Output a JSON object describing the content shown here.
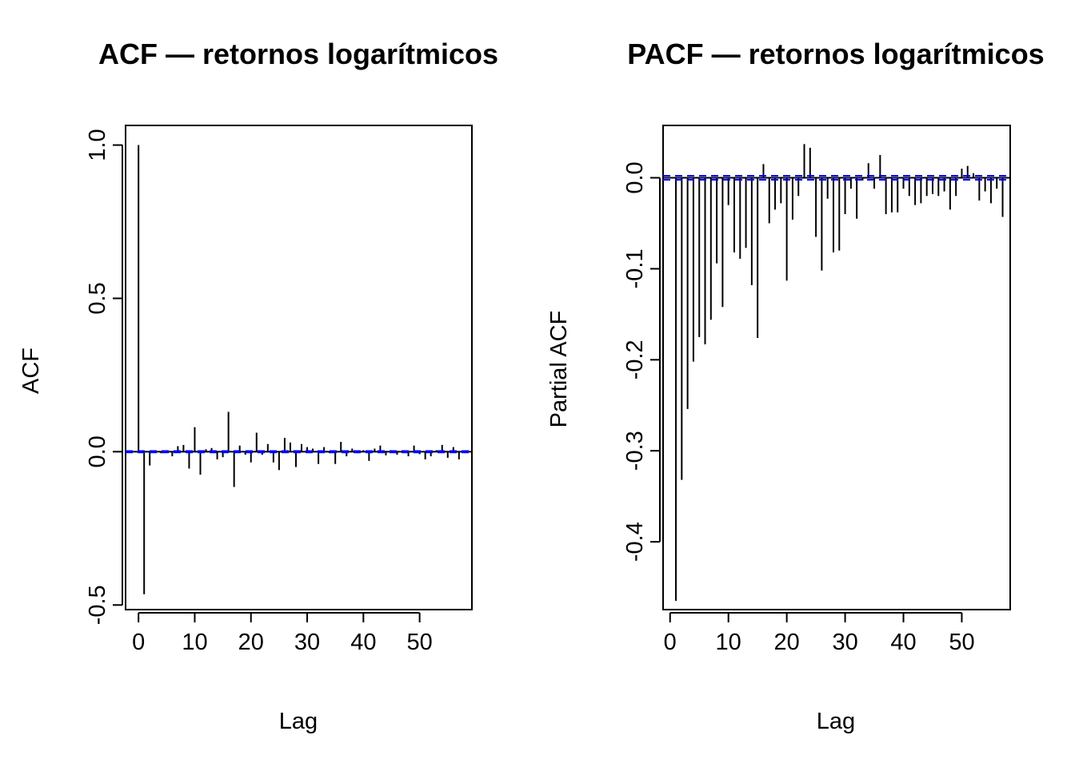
{
  "chart_data": [
    {
      "type": "bar",
      "title": "ACF — retornos logarítmicos",
      "xlabel": "Lag",
      "ylabel": "ACF",
      "xlim": [
        -2.3,
        59.3
      ],
      "ylim": [
        -0.515,
        1.064
      ],
      "xticks": [
        0,
        10,
        20,
        30,
        40,
        50
      ],
      "yticks": [
        -0.5,
        0.0,
        0.5,
        1.0
      ],
      "ytick_labels": [
        "-0.5",
        "0.0",
        "0.5",
        "1.0"
      ],
      "conf_limit": 0.0022,
      "conf_color": "#0000ff",
      "grid": false,
      "lags": [
        0,
        1,
        2,
        3,
        4,
        5,
        6,
        7,
        8,
        9,
        10,
        11,
        12,
        13,
        14,
        15,
        16,
        17,
        18,
        19,
        20,
        21,
        22,
        23,
        24,
        25,
        26,
        27,
        28,
        29,
        30,
        31,
        32,
        33,
        34,
        35,
        36,
        37,
        38,
        39,
        40,
        41,
        42,
        43,
        44,
        45,
        46,
        47,
        48,
        49,
        50,
        51,
        52,
        53,
        54,
        55,
        56,
        57
      ],
      "values": [
        1.0,
        -0.465,
        -0.045,
        0.005,
        -0.005,
        0.005,
        -0.015,
        0.018,
        0.022,
        -0.055,
        0.08,
        -0.075,
        0.008,
        0.012,
        -0.025,
        -0.018,
        0.13,
        -0.115,
        0.02,
        -0.01,
        -0.035,
        0.062,
        -0.01,
        0.025,
        -0.035,
        -0.06,
        0.045,
        0.03,
        -0.05,
        0.025,
        0.015,
        0.01,
        -0.04,
        0.015,
        -0.005,
        -0.04,
        0.032,
        -0.015,
        0.01,
        -0.005,
        0.005,
        -0.03,
        0.01,
        0.02,
        -0.012,
        0.005,
        -0.01,
        0.005,
        -0.015,
        0.02,
        -0.008,
        -0.025,
        -0.015,
        0.005,
        0.022,
        -0.02,
        0.015,
        -0.025
      ]
    },
    {
      "type": "bar",
      "title": "PACF — retornos logarítmicos",
      "xlabel": "Lag",
      "ylabel": "Partial ACF",
      "xlim": [
        -1.2,
        58.3
      ],
      "ylim": [
        -0.4745,
        0.0575
      ],
      "xticks": [
        0,
        10,
        20,
        30,
        40,
        50
      ],
      "yticks": [
        -0.4,
        -0.3,
        -0.2,
        -0.1,
        0.0
      ],
      "ytick_labels": [
        "-0.4",
        "-0.3",
        "-0.2",
        "-0.1",
        "0.0"
      ],
      "conf_limit": 0.0022,
      "conf_color": "#0000ff",
      "grid": false,
      "lags": [
        1,
        2,
        3,
        4,
        5,
        6,
        7,
        8,
        9,
        10,
        11,
        12,
        13,
        14,
        15,
        16,
        17,
        18,
        19,
        20,
        21,
        22,
        23,
        24,
        25,
        26,
        27,
        28,
        29,
        30,
        31,
        32,
        33,
        34,
        35,
        36,
        37,
        38,
        39,
        40,
        41,
        42,
        43,
        44,
        45,
        46,
        47,
        48,
        49,
        50,
        51,
        52,
        53,
        54,
        55,
        56,
        57
      ],
      "values": [
        -0.465,
        -0.332,
        -0.254,
        -0.202,
        -0.175,
        -0.183,
        -0.156,
        -0.094,
        -0.142,
        -0.03,
        -0.082,
        -0.089,
        -0.077,
        -0.118,
        -0.176,
        0.015,
        -0.05,
        -0.035,
        -0.028,
        -0.113,
        -0.046,
        -0.02,
        0.037,
        0.033,
        -0.065,
        -0.102,
        -0.023,
        -0.082,
        -0.08,
        -0.04,
        -0.012,
        -0.045,
        -0.003,
        0.016,
        -0.012,
        0.025,
        -0.04,
        -0.038,
        -0.038,
        -0.012,
        -0.02,
        -0.03,
        -0.028,
        -0.02,
        -0.018,
        -0.02,
        -0.015,
        -0.035,
        -0.02,
        0.01,
        0.013,
        0.005,
        -0.025,
        -0.015,
        -0.028,
        -0.012,
        -0.043
      ]
    }
  ]
}
